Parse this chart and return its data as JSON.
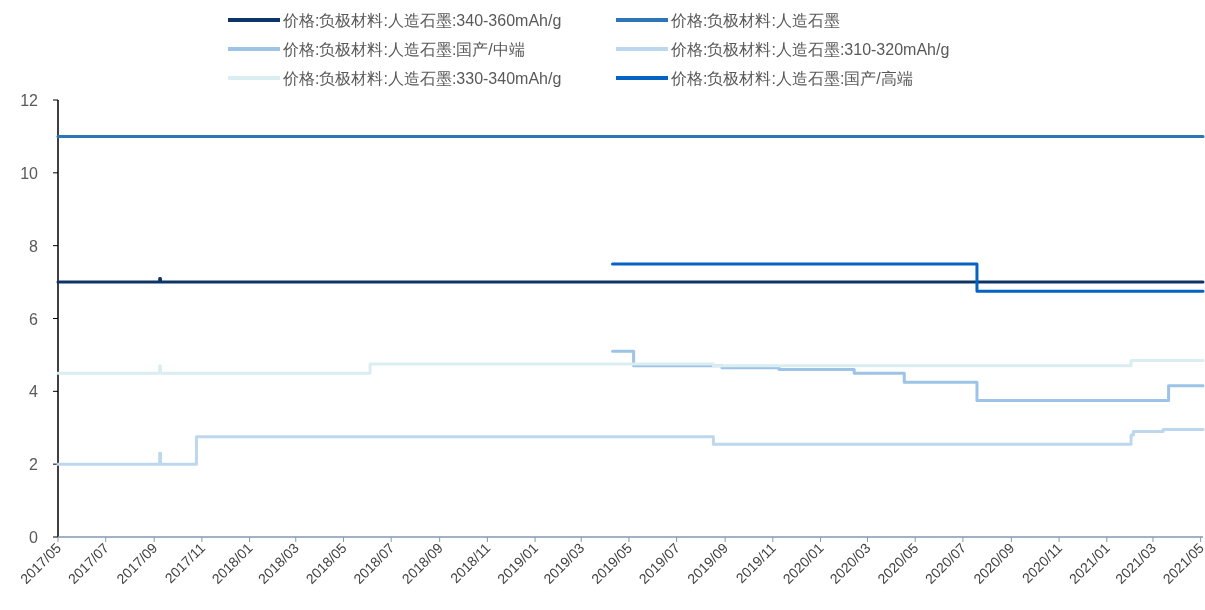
{
  "chart_data": {
    "type": "step",
    "legend": "top",
    "grid": false,
    "xlim": [
      "2017-05-01",
      "2021-05-04"
    ],
    "xticks": [
      {
        "value": "2017-05",
        "label": "2017/05"
      },
      {
        "value": "2017-07",
        "label": "2017/07"
      },
      {
        "value": "2017-09",
        "label": "2017/09"
      },
      {
        "value": "2017-11",
        "label": "2017/11"
      },
      {
        "value": "2018-01",
        "label": "2018/01"
      },
      {
        "value": "2018-03",
        "label": "2018/03"
      },
      {
        "value": "2018-05",
        "label": "2018/05"
      },
      {
        "value": "2018-07",
        "label": "2018/07"
      },
      {
        "value": "2018-09",
        "label": "2018/09"
      },
      {
        "value": "2018-11",
        "label": "2018/11"
      },
      {
        "value": "2019-01",
        "label": "2019/01"
      },
      {
        "value": "2019-03",
        "label": "2019/03"
      },
      {
        "value": "2019-05",
        "label": "2019/05"
      },
      {
        "value": "2019-07",
        "label": "2019/07"
      },
      {
        "value": "2019-09",
        "label": "2019/09"
      },
      {
        "value": "2019-11",
        "label": "2019/11"
      },
      {
        "value": "2020-01",
        "label": "2020/01"
      },
      {
        "value": "2020-03",
        "label": "2020/03"
      },
      {
        "value": "2020-05",
        "label": "2020/05"
      },
      {
        "value": "2020-07",
        "label": "2020/07"
      },
      {
        "value": "2020-09",
        "label": "2020/09"
      },
      {
        "value": "2020-11",
        "label": "2020/11"
      },
      {
        "value": "2021-01",
        "label": "2021/01"
      },
      {
        "value": "2021-03",
        "label": "2021/03"
      },
      {
        "value": "2021-05",
        "label": "2021/05"
      }
    ],
    "ylim": [
      0,
      12
    ],
    "yticks": [
      0,
      2,
      4,
      6,
      8,
      10,
      12
    ],
    "series": [
      {
        "name": "价格:负极材料:人造石墨:340-360mAh/g",
        "color": "#0d3466",
        "x": [
          "2017-05-01",
          "2017-09-08",
          "2017-09-09",
          "2021-05-04"
        ],
        "values": [
          7,
          7.1,
          7,
          7
        ]
      },
      {
        "name": "价格:负极材料:人造石墨",
        "color": "#2e75b6",
        "x": [
          "2017-05-01",
          "2021-05-04"
        ],
        "values": [
          11,
          11
        ]
      },
      {
        "name": "价格:负极材料:人造石墨:国产/中端",
        "color": "#9dc3e6",
        "x": [
          "2019-04-10",
          "2019-05-07",
          "2019-08-28",
          "2019-11-09",
          "2020-02-13",
          "2020-04-17",
          "2020-07-19",
          "2021-03-21",
          "2021-05-04"
        ],
        "values": [
          5.1,
          4.7,
          4.65,
          4.6,
          4.5,
          4.25,
          3.75,
          4.15,
          4.15
        ]
      },
      {
        "name": "价格:负极材料:人造石墨:310-320mAh/g",
        "color": "#bdd7ee",
        "x": [
          "2017-05-01",
          "2017-09-08",
          "2017-09-09",
          "2017-10-25",
          "2019-08-17",
          "2021-02-01",
          "2021-02-04",
          "2021-03-14",
          "2021-05-04"
        ],
        "values": [
          2,
          2.3,
          2,
          2.75,
          2.55,
          2.8,
          2.9,
          2.95,
          2.95
        ]
      },
      {
        "name": "价格:负极材料:人造石墨:330-340mAh/g",
        "color": "#daedf0",
        "x": [
          "2017-05-01",
          "2017-09-08",
          "2017-09-09",
          "2018-06-04",
          "2019-08-17",
          "2021-02-01",
          "2021-05-04"
        ],
        "values": [
          4.5,
          4.7,
          4.5,
          4.75,
          4.7,
          4.85,
          4.85
        ]
      },
      {
        "name": "价格:负极材料:人造石墨:国产/高端",
        "color": "#0563c1",
        "x": [
          "2019-04-10",
          "2020-07-19",
          "2021-05-04"
        ],
        "values": [
          7.5,
          6.75,
          6.75
        ]
      }
    ]
  }
}
